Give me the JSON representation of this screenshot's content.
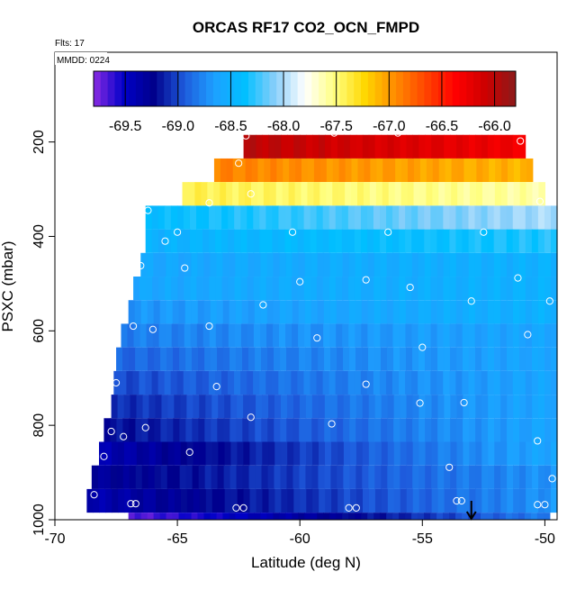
{
  "chart_data": {
    "type": "heatmap",
    "title": "ORCAS RF17 CO2_OCN_FMPD",
    "annotations": {
      "flights": "Flts: 17",
      "date": "MMDD: 0224"
    },
    "xlabel": "Latitude (deg N)",
    "ylabel": "PSXC (mbar)",
    "xlim": [
      -70,
      -49.5
    ],
    "ylim": [
      1000,
      10
    ],
    "x_ticks": [
      -70,
      -65,
      -60,
      -55,
      -50
    ],
    "x_tick_labels": [
      "-70",
      "-65",
      "-60",
      "-55",
      "-50"
    ],
    "y_ticks": [
      200,
      400,
      600,
      800,
      1000
    ],
    "y_tick_labels": [
      "200",
      "400",
      "600",
      "800",
      "1000"
    ],
    "colorbar": {
      "min": -69.8,
      "max": -65.8,
      "ticks": [
        -69.5,
        -69.0,
        -68.5,
        -68.0,
        -67.5,
        -67.0,
        -66.5,
        -66.0
      ],
      "tick_labels": [
        "-69.5",
        "-69.0",
        "-68.5",
        "-68.0",
        "-67.5",
        "-67.0",
        "-66.5",
        "-66.0"
      ],
      "colors": [
        "#8a2be2",
        "#0000c8",
        "#00008b",
        "#1e5adc",
        "#1ea0ff",
        "#00bfff",
        "#87cefa",
        "#ffffff",
        "#ffff80",
        "#ffd700",
        "#ff8c00",
        "#ff4500",
        "#ff0000",
        "#cd0000",
        "#8b1a1a"
      ]
    },
    "bands": [
      {
        "p_top": 185,
        "p_bot": 235,
        "lat_min": -62.3,
        "lat_max": -50.8,
        "v_left": -66.0,
        "v_right": -66.3
      },
      {
        "p_top": 235,
        "p_bot": 285,
        "lat_min": -63.5,
        "lat_max": -50.5,
        "v_left": -66.9,
        "v_right": -67.1
      },
      {
        "p_top": 285,
        "p_bot": 335,
        "lat_min": -64.8,
        "lat_max": -50.0,
        "v_left": -67.4,
        "v_right": -67.6
      },
      {
        "p_top": 335,
        "p_bot": 385,
        "lat_min": -66.3,
        "lat_max": -49.5,
        "v_left": -68.4,
        "v_right": -68.0
      },
      {
        "p_top": 385,
        "p_bot": 435,
        "lat_min": -66.3,
        "lat_max": -49.5,
        "v_left": -68.5,
        "v_right": -68.3
      },
      {
        "p_top": 435,
        "p_bot": 485,
        "lat_min": -66.5,
        "lat_max": -49.5,
        "v_left": -68.6,
        "v_right": -68.5
      },
      {
        "p_top": 485,
        "p_bot": 535,
        "lat_min": -66.8,
        "lat_max": -49.5,
        "v_left": -68.6,
        "v_right": -68.5
      },
      {
        "p_top": 535,
        "p_bot": 585,
        "lat_min": -67.0,
        "lat_max": -49.5,
        "v_left": -68.7,
        "v_right": -68.5
      },
      {
        "p_top": 585,
        "p_bot": 635,
        "lat_min": -67.3,
        "lat_max": -49.5,
        "v_left": -68.8,
        "v_right": -68.6
      },
      {
        "p_top": 635,
        "p_bot": 685,
        "lat_min": -67.5,
        "lat_max": -49.5,
        "v_left": -68.9,
        "v_right": -68.6
      },
      {
        "p_top": 685,
        "p_bot": 735,
        "lat_min": -67.6,
        "lat_max": -49.5,
        "v_left": -69.0,
        "v_right": -68.6
      },
      {
        "p_top": 735,
        "p_bot": 785,
        "lat_min": -67.7,
        "lat_max": -49.5,
        "v_left": -69.1,
        "v_right": -68.6
      },
      {
        "p_top": 785,
        "p_bot": 835,
        "lat_min": -68.0,
        "lat_max": -49.5,
        "v_left": -69.2,
        "v_right": -68.6
      },
      {
        "p_top": 835,
        "p_bot": 885,
        "lat_min": -68.2,
        "lat_max": -49.5,
        "v_left": -69.4,
        "v_right": -68.6
      },
      {
        "p_top": 885,
        "p_bot": 935,
        "lat_min": -68.5,
        "lat_max": -49.5,
        "v_left": -69.3,
        "v_right": -68.7
      },
      {
        "p_top": 935,
        "p_bot": 985,
        "lat_min": -68.7,
        "lat_max": -49.5,
        "v_left": -69.4,
        "v_right": -68.7
      },
      {
        "p_top": 985,
        "p_bot": 1000,
        "lat_min": -67.0,
        "lat_max": -49.8,
        "v_left": -69.7,
        "v_right": -68.8
      }
    ],
    "points": [
      [
        -62.2,
        187
      ],
      [
        -58.6,
        181
      ],
      [
        -56.0,
        181
      ],
      [
        -51.0,
        198
      ],
      [
        -62.5,
        245
      ],
      [
        -63.7,
        329
      ],
      [
        -62.0,
        310
      ],
      [
        -50.2,
        326
      ],
      [
        -66.2,
        345
      ],
      [
        -65.0,
        391
      ],
      [
        -60.3,
        391
      ],
      [
        -56.4,
        391
      ],
      [
        -52.5,
        391
      ],
      [
        -65.5,
        410
      ],
      [
        -66.5,
        462
      ],
      [
        -64.7,
        467
      ],
      [
        -60.0,
        496
      ],
      [
        -57.3,
        492
      ],
      [
        -55.5,
        508
      ],
      [
        -51.1,
        488
      ],
      [
        -66.8,
        590
      ],
      [
        -61.5,
        545
      ],
      [
        -53.0,
        537
      ],
      [
        -49.8,
        537
      ],
      [
        -66.0,
        597
      ],
      [
        -63.7,
        590
      ],
      [
        -59.3,
        615
      ],
      [
        -55.0,
        635
      ],
      [
        -50.7,
        608
      ],
      [
        -67.5,
        710
      ],
      [
        -63.4,
        718
      ],
      [
        -57.3,
        713
      ],
      [
        -55.1,
        753
      ],
      [
        -53.3,
        752
      ],
      [
        -62.0,
        783
      ],
      [
        -58.7,
        797
      ],
      [
        -66.3,
        805
      ],
      [
        -67.7,
        813
      ],
      [
        -67.2,
        824
      ],
      [
        -50.3,
        833
      ],
      [
        -64.5,
        857
      ],
      [
        -68.0,
        866
      ],
      [
        -53.9,
        889
      ],
      [
        -49.7,
        913
      ],
      [
        -68.4,
        947
      ],
      [
        -66.9,
        966
      ],
      [
        -66.7,
        966
      ],
      [
        -53.6,
        960
      ],
      [
        -53.4,
        960
      ],
      [
        -62.6,
        975
      ],
      [
        -62.3,
        975
      ],
      [
        -58.0,
        975
      ],
      [
        -57.7,
        975
      ],
      [
        -50.3,
        968
      ],
      [
        -50.0,
        968
      ]
    ],
    "marker_arrow_lat": -53.0
  }
}
